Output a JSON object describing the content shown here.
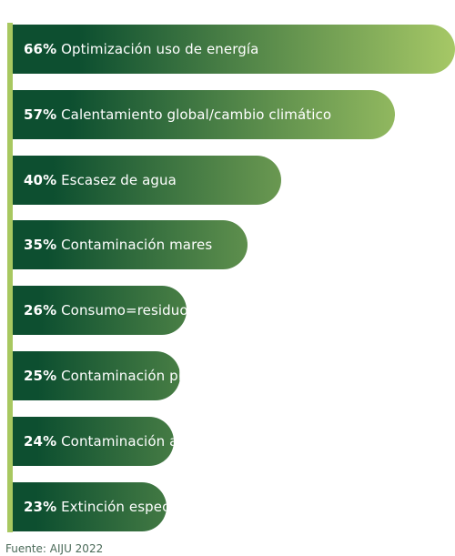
{
  "chart_data": {
    "type": "bar",
    "orientation": "horizontal",
    "categories": [
      "Optimización uso de energía",
      "Calentamiento global/cambio climático",
      "Escasez de agua",
      "Contaminación mares",
      "Consumo=residuos",
      "Contaminación plástico",
      "Contaminación aire",
      "Extinción especies"
    ],
    "value_labels": [
      "66%",
      "57%",
      "40%",
      "35%",
      "26%",
      "25%",
      "24%",
      "23%"
    ],
    "values": [
      66,
      57,
      40,
      35,
      26,
      25,
      24,
      23
    ],
    "unit": "%",
    "xlim": [
      0,
      66
    ],
    "grid": false,
    "colors": {
      "bar_start": "#0d4f30",
      "bar_end": "#a6c866",
      "axis_line": "#a8c860"
    }
  },
  "footer": {
    "source": "Fuente: AIJU 2022"
  }
}
